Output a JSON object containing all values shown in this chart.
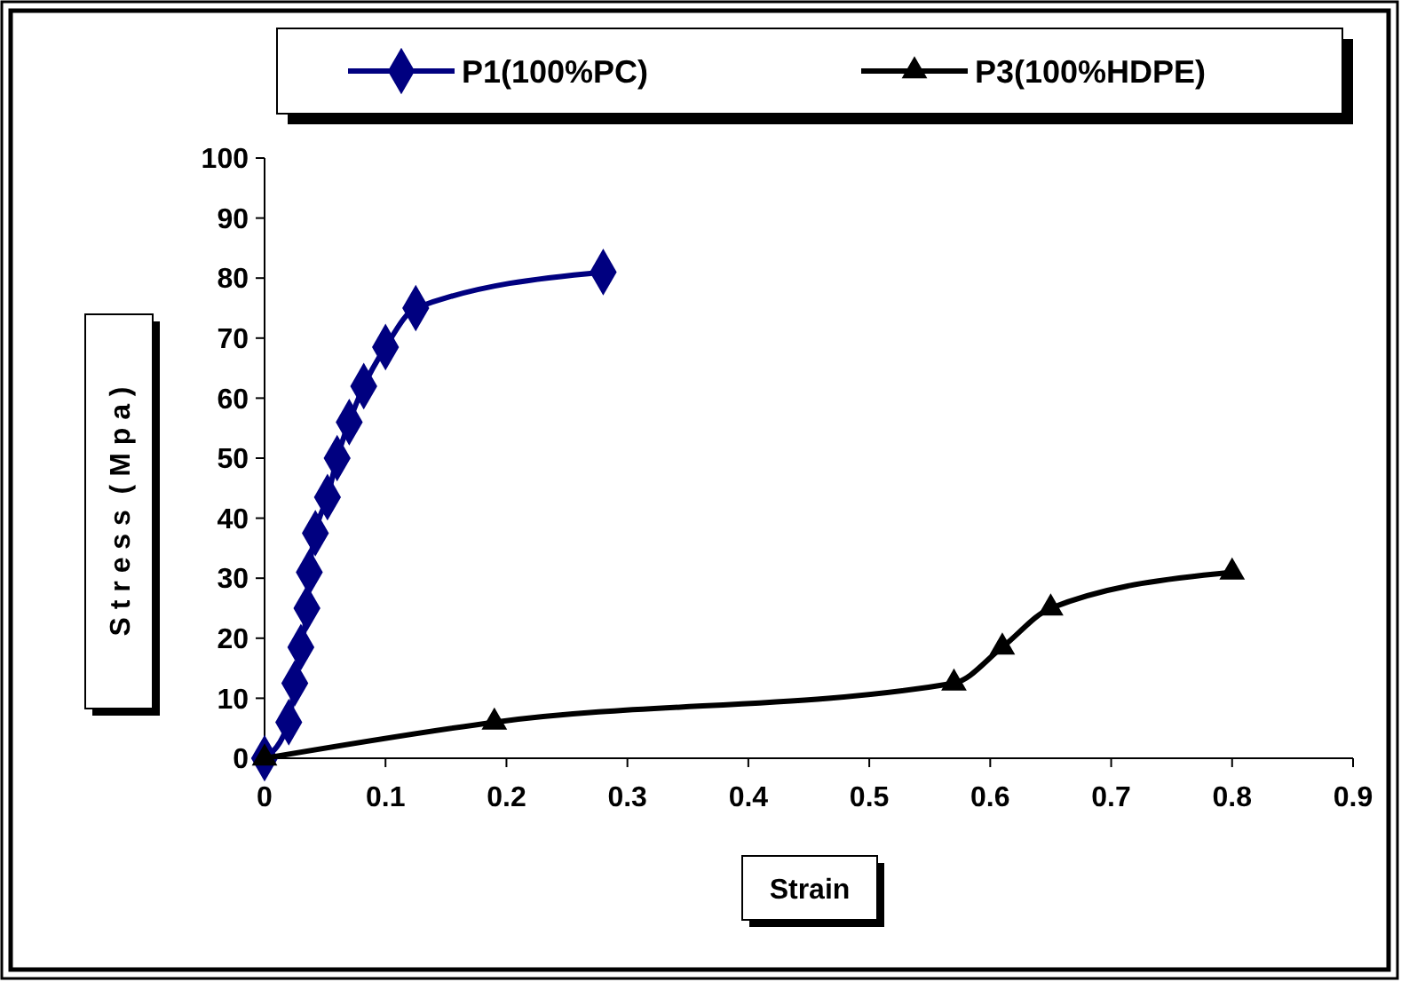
{
  "chart_data": {
    "type": "line",
    "xlabel": "Strain",
    "ylabel": "S t r e s s  ( M p a )",
    "xlim": [
      0,
      0.9
    ],
    "xticks": [
      0,
      0.1,
      0.2,
      0.3,
      0.4,
      0.5,
      0.6,
      0.7,
      0.8,
      0.9
    ],
    "ylim": [
      0,
      100
    ],
    "yticks": [
      0,
      10,
      20,
      30,
      40,
      50,
      60,
      70,
      80,
      90,
      100
    ],
    "grid": false,
    "legend": "top",
    "series": [
      {
        "name": "P1(100%PC)",
        "color": "#000080",
        "marker": "diamond",
        "x": [
          0,
          0.02,
          0.025,
          0.03,
          0.035,
          0.037,
          0.042,
          0.052,
          0.06,
          0.07,
          0.082,
          0.1,
          0.125,
          0.28
        ],
        "values": [
          0,
          6,
          12.5,
          18.5,
          25,
          31,
          37.5,
          43.5,
          50,
          56,
          62,
          68.5,
          75,
          81
        ]
      },
      {
        "name": "P3(100%HDPE)",
        "color": "#000000",
        "marker": "triangle",
        "x": [
          0,
          0.19,
          0.57,
          0.61,
          0.65,
          0.8
        ],
        "values": [
          0,
          6,
          12.5,
          18.5,
          25,
          31
        ]
      }
    ]
  }
}
